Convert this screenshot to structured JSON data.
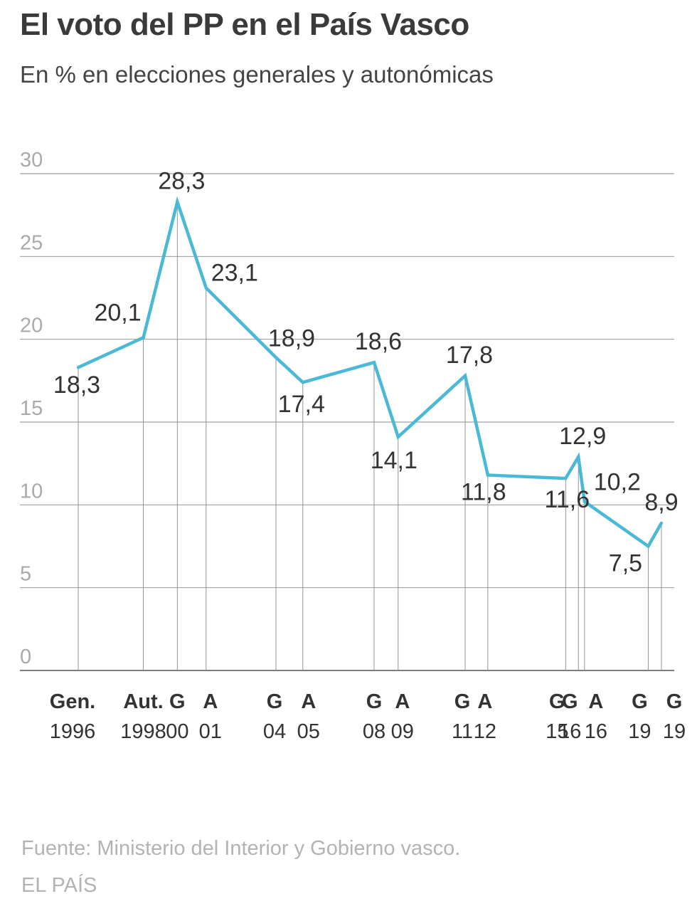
{
  "title": "El voto del PP en el País Vasco",
  "subtitle": "En % en elecciones generales y autonómicas",
  "source": "Fuente: Ministerio del Interior y Gobierno vasco.",
  "brand": "EL PAÍS",
  "colors": {
    "line": "#4ab9d6",
    "grid": "#888888",
    "ytick": "#aaaaaa",
    "text": "#333333"
  },
  "chart_data": {
    "type": "line",
    "ylim": [
      0,
      30
    ],
    "yticks": [
      0,
      5,
      10,
      15,
      20,
      25,
      30
    ],
    "grid": true,
    "series": [
      {
        "points": [
          {
            "date": "1996-03-03",
            "value": 18.3,
            "label": "18,3",
            "type": "Gen.",
            "year": "1996"
          },
          {
            "date": "1998-10-25",
            "value": 20.1,
            "label": "20,1",
            "type": "Aut.",
            "year": "1998"
          },
          {
            "date": "2000-03-12",
            "value": 28.3,
            "label": "28,3",
            "type": "G",
            "year": "00"
          },
          {
            "date": "2001-05-13",
            "value": 23.1,
            "label": "23,1",
            "type": "A",
            "year": "01"
          },
          {
            "date": "2004-03-14",
            "value": 18.9,
            "label": "18,9",
            "type": "G",
            "year": "04"
          },
          {
            "date": "2005-04-17",
            "value": 17.4,
            "label": "17,4",
            "type": "A",
            "year": "05"
          },
          {
            "date": "2008-03-09",
            "value": 18.6,
            "label": "18,6",
            "type": "G",
            "year": "08"
          },
          {
            "date": "2009-03-01",
            "value": 14.1,
            "label": "14,1",
            "type": "A",
            "year": "09"
          },
          {
            "date": "2011-11-20",
            "value": 17.8,
            "label": "17,8",
            "type": "G",
            "year": "11"
          },
          {
            "date": "2012-10-21",
            "value": 11.8,
            "label": "11,8",
            "type": "A",
            "year": "12"
          },
          {
            "date": "2015-12-20",
            "value": 11.6,
            "label": "11,6",
            "type": "G",
            "year": "15"
          },
          {
            "date": "2016-06-26",
            "value": 12.9,
            "label": "12,9",
            "type": "G",
            "year": "16"
          },
          {
            "date": "2016-09-25",
            "value": 10.2,
            "label": "10,2",
            "type": "A",
            "year": "16"
          },
          {
            "date": "2019-04-28",
            "value": 7.5,
            "label": "7,5",
            "type": "G",
            "year": "19"
          },
          {
            "date": "2019-11-10",
            "value": 8.9,
            "label": "8,9",
            "type": "G",
            "year": "19"
          }
        ]
      }
    ]
  }
}
